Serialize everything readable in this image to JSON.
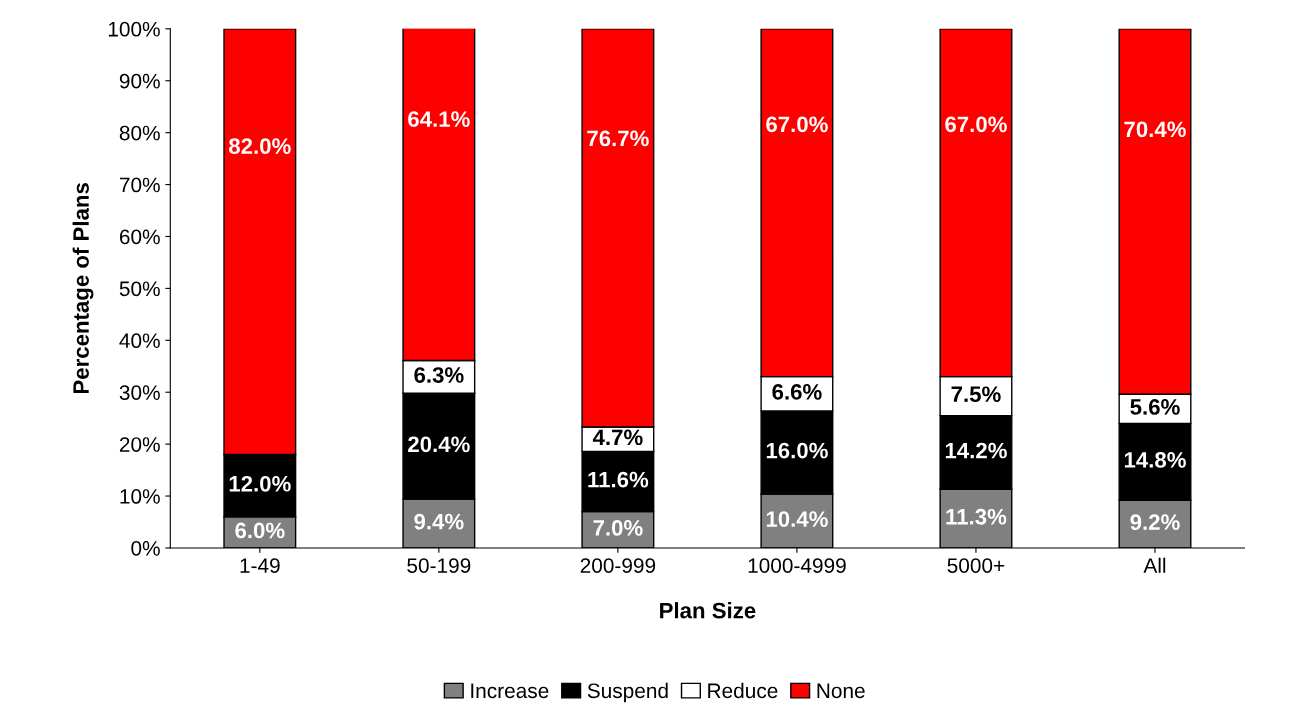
{
  "chart_data": {
    "type": "bar",
    "stacked": true,
    "xlabel": "Plan Size",
    "ylabel": "Percentage of Plans",
    "categories": [
      "1-49",
      "50-199",
      "200-999",
      "1000-4999",
      "5000+",
      "All"
    ],
    "series": [
      {
        "name": "Increase",
        "color": "#808080",
        "values": [
          6.0,
          9.4,
          7.0,
          10.4,
          11.3,
          9.2
        ],
        "value_labels": [
          "6.0%",
          "9.4%",
          "7.0%",
          "10.4%",
          "11.3%",
          "9.2%"
        ]
      },
      {
        "name": "Suspend",
        "color": "#000000",
        "values": [
          12.0,
          20.4,
          11.6,
          16.0,
          14.2,
          14.8
        ],
        "value_labels": [
          "12.0%",
          "20.4%",
          "11.6%",
          "16.0%",
          "14.2%",
          "14.8%"
        ]
      },
      {
        "name": "Reduce",
        "color": "#ffffff",
        "values": [
          null,
          6.3,
          4.7,
          6.6,
          7.5,
          5.6
        ],
        "value_labels": [
          null,
          "6.3%",
          "4.7%",
          "6.6%",
          "7.5%",
          "5.6%"
        ]
      },
      {
        "name": "None",
        "color": "#ff0000",
        "values": [
          82.0,
          64.1,
          76.7,
          67.0,
          67.0,
          70.4
        ],
        "value_labels": [
          "82.0%",
          "64.1%",
          "76.7%",
          "67.0%",
          "67.0%",
          "70.4%"
        ]
      }
    ],
    "ylim": [
      0,
      100
    ],
    "yticks": [
      {
        "value": 0,
        "label": "0%"
      },
      {
        "value": 10,
        "label": "10%"
      },
      {
        "value": 20,
        "label": "20%"
      },
      {
        "value": 30,
        "label": "30%"
      },
      {
        "value": 40,
        "label": "40%"
      },
      {
        "value": 50,
        "label": "50%"
      },
      {
        "value": 60,
        "label": "60%"
      },
      {
        "value": 70,
        "label": "70%"
      },
      {
        "value": 80,
        "label": "80%"
      },
      {
        "value": 90,
        "label": "90%"
      },
      {
        "value": 100,
        "label": "100%"
      }
    ],
    "grid": false,
    "legend": "bottom"
  }
}
